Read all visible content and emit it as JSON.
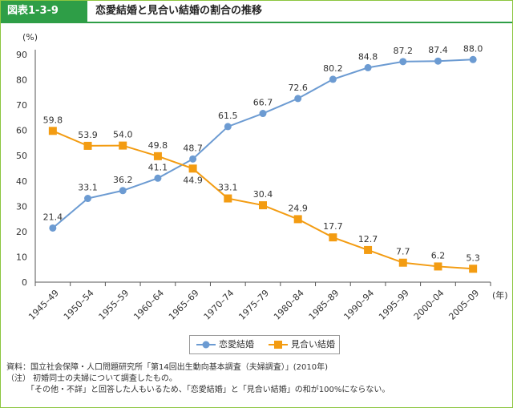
{
  "header": {
    "badge": "図表1-3-9",
    "title": "恋愛結婚と見合い結婚の割合の推移"
  },
  "colors": {
    "love": "#6c9bd2",
    "arranged": "#f39c12",
    "frame": "#8cc63f",
    "header": "#2e9e47"
  },
  "chart_data": {
    "type": "line",
    "unit_y": "(%)",
    "unit_x": "(年)",
    "categories": [
      "1945–49",
      "1950–54",
      "1955–59",
      "1960–64",
      "1965–69",
      "1970–74",
      "1975–79",
      "1980–84",
      "1985–89",
      "1990–94",
      "1995–99",
      "2000–04",
      "2005–09"
    ],
    "ylim": [
      0,
      90
    ],
    "yticks": [
      0,
      10,
      20,
      30,
      40,
      50,
      60,
      70,
      80,
      90
    ],
    "series": [
      {
        "name": "恋愛結婚",
        "marker": "circle",
        "values": [
          21.4,
          33.1,
          36.2,
          41.1,
          48.7,
          61.5,
          66.7,
          72.6,
          80.2,
          84.8,
          87.2,
          87.4,
          88.0
        ],
        "labels": [
          "21.4",
          "33.1",
          "36.2",
          "41.1",
          "48.7",
          "61.5",
          "66.7",
          "72.6",
          "80.2",
          "84.8",
          "87.2",
          "87.4",
          "88.0"
        ]
      },
      {
        "name": "見合い結婚",
        "marker": "square",
        "values": [
          59.8,
          53.9,
          54.0,
          49.8,
          44.9,
          33.1,
          30.4,
          24.9,
          17.7,
          12.7,
          7.7,
          6.2,
          5.3
        ],
        "labels": [
          "59.8",
          "53.9",
          "54.0",
          "49.8",
          "44.9",
          "33.1",
          "30.4",
          "24.9",
          "17.7",
          "12.7",
          "7.7",
          "6.2",
          "5.3"
        ]
      }
    ]
  },
  "notes": [
    "資料：国立社会保障・人口問題研究所「第14回出生動向基本調査（夫婦調査）」(2010年)",
    "（注） 初婚同士の夫婦について調査したもの。",
    "　　　「その他・不詳」と回答した人もいるため、「恋愛結婚」と「見合い結婚」の和が100%にならない。"
  ]
}
